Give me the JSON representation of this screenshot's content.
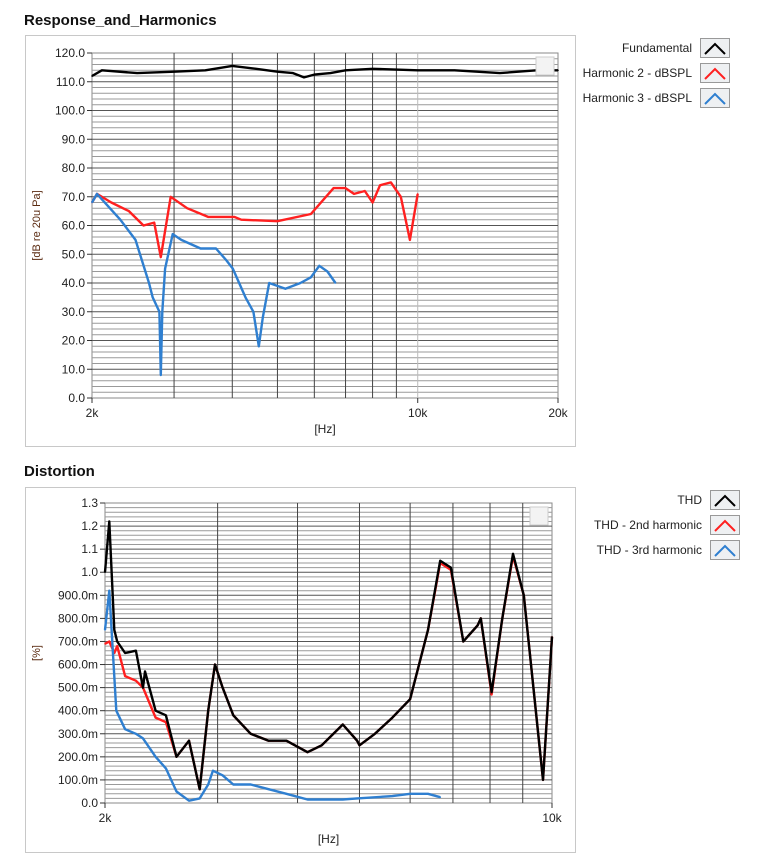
{
  "charts": [
    {
      "title": "Response_and_Harmonics",
      "legend": [
        {
          "name": "Fundamental",
          "color": "#000000"
        },
        {
          "name": "Harmonic 2 - dBSPL",
          "color": "#ff2020"
        },
        {
          "name": "Harmonic 3 - dBSPL",
          "color": "#2f7fd0"
        }
      ]
    },
    {
      "title": "Distortion",
      "legend": [
        {
          "name": "THD",
          "color": "#000000"
        },
        {
          "name": "THD - 2nd harmonic",
          "color": "#ff2020"
        },
        {
          "name": "THD - 3rd harmonic",
          "color": "#2f7fd0"
        }
      ]
    }
  ],
  "chart_data": [
    {
      "type": "line",
      "title": "Response_and_Harmonics",
      "xlabel": "[Hz]",
      "ylabel": "[dB re 20u Pa]",
      "xscale": "log",
      "xlim": [
        2000,
        20000
      ],
      "ylim": [
        0,
        120
      ],
      "grid": true,
      "legend_position": "right",
      "xticks": [
        {
          "value": 2000,
          "label": "2k"
        },
        {
          "value": 10000,
          "label": "10k"
        },
        {
          "value": 20000,
          "label": "20k"
        }
      ],
      "yticks": [
        {
          "value": 0,
          "label": "0.0"
        },
        {
          "value": 10,
          "label": "10.0"
        },
        {
          "value": 20,
          "label": "20.0"
        },
        {
          "value": 30,
          "label": "30.0"
        },
        {
          "value": 40,
          "label": "40.0"
        },
        {
          "value": 50,
          "label": "50.0"
        },
        {
          "value": 60,
          "label": "60.0"
        },
        {
          "value": 70,
          "label": "70.0"
        },
        {
          "value": 80,
          "label": "80.0"
        },
        {
          "value": 90,
          "label": "90.0"
        },
        {
          "value": 100,
          "label": "100.0"
        },
        {
          "value": 110,
          "label": "110.0"
        },
        {
          "value": 120,
          "label": "120.0"
        }
      ],
      "series": [
        {
          "name": "Fundamental",
          "color": "#000000",
          "x": [
            2000,
            2100,
            2500,
            3000,
            3500,
            4000,
            4500,
            5000,
            5400,
            5700,
            6000,
            6500,
            7000,
            8000,
            10000,
            12000,
            15000,
            18000,
            20000
          ],
          "y": [
            112,
            114,
            113,
            113.5,
            114,
            115.5,
            114.5,
            113.5,
            113,
            111.5,
            112.5,
            113,
            114,
            114.5,
            114,
            114,
            113,
            114,
            114
          ]
        },
        {
          "name": "Harmonic 2 - dBSPL",
          "color": "#ff2020",
          "x": [
            2000,
            2050,
            2200,
            2400,
            2580,
            2720,
            2810,
            2950,
            3200,
            3550,
            4040,
            4180,
            5000,
            5900,
            6600,
            7000,
            7300,
            7700,
            8000,
            8300,
            8760,
            9200,
            9620,
            10000
          ],
          "y": [
            68,
            71,
            68,
            65,
            60,
            61,
            49,
            70,
            66,
            63,
            63,
            62,
            61.5,
            64,
            73,
            73,
            71,
            72,
            68,
            74,
            75,
            70,
            55,
            71
          ]
        },
        {
          "name": "Harmonic 3 - dBSPL",
          "color": "#2f7fd0",
          "x": [
            2000,
            2050,
            2300,
            2480,
            2650,
            2700,
            2790,
            2810,
            2830,
            2870,
            2980,
            3110,
            3420,
            3690,
            3880,
            4010,
            4270,
            4440,
            4560,
            4650,
            4800,
            5200,
            5600,
            5900,
            6150,
            6400,
            6660
          ],
          "y": [
            68,
            71,
            62,
            55,
            40,
            35,
            30,
            8,
            30,
            45,
            57,
            55,
            52,
            52,
            48,
            45,
            35,
            30,
            18,
            28,
            40,
            38,
            40,
            42,
            46,
            44,
            40
          ]
        }
      ]
    },
    {
      "type": "line",
      "title": "Distortion",
      "xlabel": "[Hz]",
      "ylabel": "[%]",
      "xscale": "log",
      "xlim": [
        2000,
        10000
      ],
      "ylim": [
        0,
        1.3
      ],
      "grid": true,
      "legend_position": "right",
      "xticks": [
        {
          "value": 2000,
          "label": "2k"
        },
        {
          "value": 10000,
          "label": "10k"
        }
      ],
      "yticks": [
        {
          "value": 0,
          "label": "0.0"
        },
        {
          "value": 0.1,
          "label": "100.0m"
        },
        {
          "value": 0.2,
          "label": "200.0m"
        },
        {
          "value": 0.3,
          "label": "300.0m"
        },
        {
          "value": 0.4,
          "label": "400.0m"
        },
        {
          "value": 0.5,
          "label": "500.0m"
        },
        {
          "value": 0.6,
          "label": "600.0m"
        },
        {
          "value": 0.7,
          "label": "700.0m"
        },
        {
          "value": 0.8,
          "label": "800.0m"
        },
        {
          "value": 0.9,
          "label": "900.0m"
        },
        {
          "value": 1.0,
          "label": "1.0"
        },
        {
          "value": 1.1,
          "label": "1.1"
        },
        {
          "value": 1.2,
          "label": "1.2"
        },
        {
          "value": 1.3,
          "label": "1.3"
        }
      ],
      "series": [
        {
          "name": "THD - 2nd harmonic",
          "color": "#ff2020",
          "x": [
            2000,
            2031,
            2068,
            2090,
            2150,
            2235,
            2293,
            2400,
            2490,
            2587,
            2706,
            2813,
            2900,
            2972,
            3054,
            3174,
            3380,
            3604,
            3843,
            4146,
            4364,
            4708,
            4958,
            5000,
            5286,
            5630,
            6000,
            6400,
            6687,
            6950,
            7267,
            7654,
            7740,
            8046,
            8362,
            8690,
            9034,
            9680,
            10000
          ],
          "y": [
            0.69,
            0.7,
            0.65,
            0.68,
            0.55,
            0.53,
            0.5,
            0.37,
            0.35,
            0.2,
            0.27,
            0.06,
            0.4,
            0.6,
            0.5,
            0.38,
            0.3,
            0.27,
            0.27,
            0.22,
            0.25,
            0.34,
            0.27,
            0.25,
            0.3,
            0.37,
            0.45,
            0.75,
            1.04,
            1.01,
            0.7,
            0.77,
            0.8,
            0.47,
            0.8,
            1.07,
            0.9,
            0.1,
            0.72
          ]
        },
        {
          "name": "THD - 3rd harmonic",
          "color": "#2f7fd0",
          "x": [
            2000,
            2031,
            2083,
            2150,
            2235,
            2293,
            2400,
            2490,
            2587,
            2706,
            2813,
            2900,
            2950,
            3054,
            3174,
            3380,
            3604,
            3843,
            4146,
            4708,
            4958,
            5630,
            6000,
            6400,
            6687
          ],
          "y": [
            0.75,
            0.92,
            0.4,
            0.32,
            0.3,
            0.28,
            0.2,
            0.15,
            0.05,
            0.01,
            0.02,
            0.08,
            0.14,
            0.12,
            0.08,
            0.08,
            0.06,
            0.04,
            0.015,
            0.015,
            0.02,
            0.03,
            0.04,
            0.04,
            0.025
          ]
        },
        {
          "name": "THD",
          "color": "#000000",
          "x": [
            2000,
            2031,
            2068,
            2090,
            2150,
            2235,
            2293,
            2310,
            2400,
            2490,
            2587,
            2706,
            2813,
            2900,
            2972,
            3054,
            3174,
            3380,
            3604,
            3843,
            4146,
            4364,
            4708,
            4958,
            5000,
            5286,
            5630,
            6000,
            6400,
            6687,
            6950,
            7267,
            7654,
            7740,
            8046,
            8362,
            8690,
            9034,
            9680,
            10000
          ],
          "y": [
            1.0,
            1.22,
            0.75,
            0.7,
            0.65,
            0.66,
            0.5,
            0.57,
            0.4,
            0.38,
            0.2,
            0.27,
            0.06,
            0.4,
            0.6,
            0.5,
            0.38,
            0.3,
            0.27,
            0.27,
            0.22,
            0.25,
            0.34,
            0.27,
            0.25,
            0.3,
            0.37,
            0.45,
            0.75,
            1.05,
            1.02,
            0.7,
            0.77,
            0.8,
            0.48,
            0.8,
            1.08,
            0.9,
            0.1,
            0.72
          ]
        }
      ]
    }
  ]
}
